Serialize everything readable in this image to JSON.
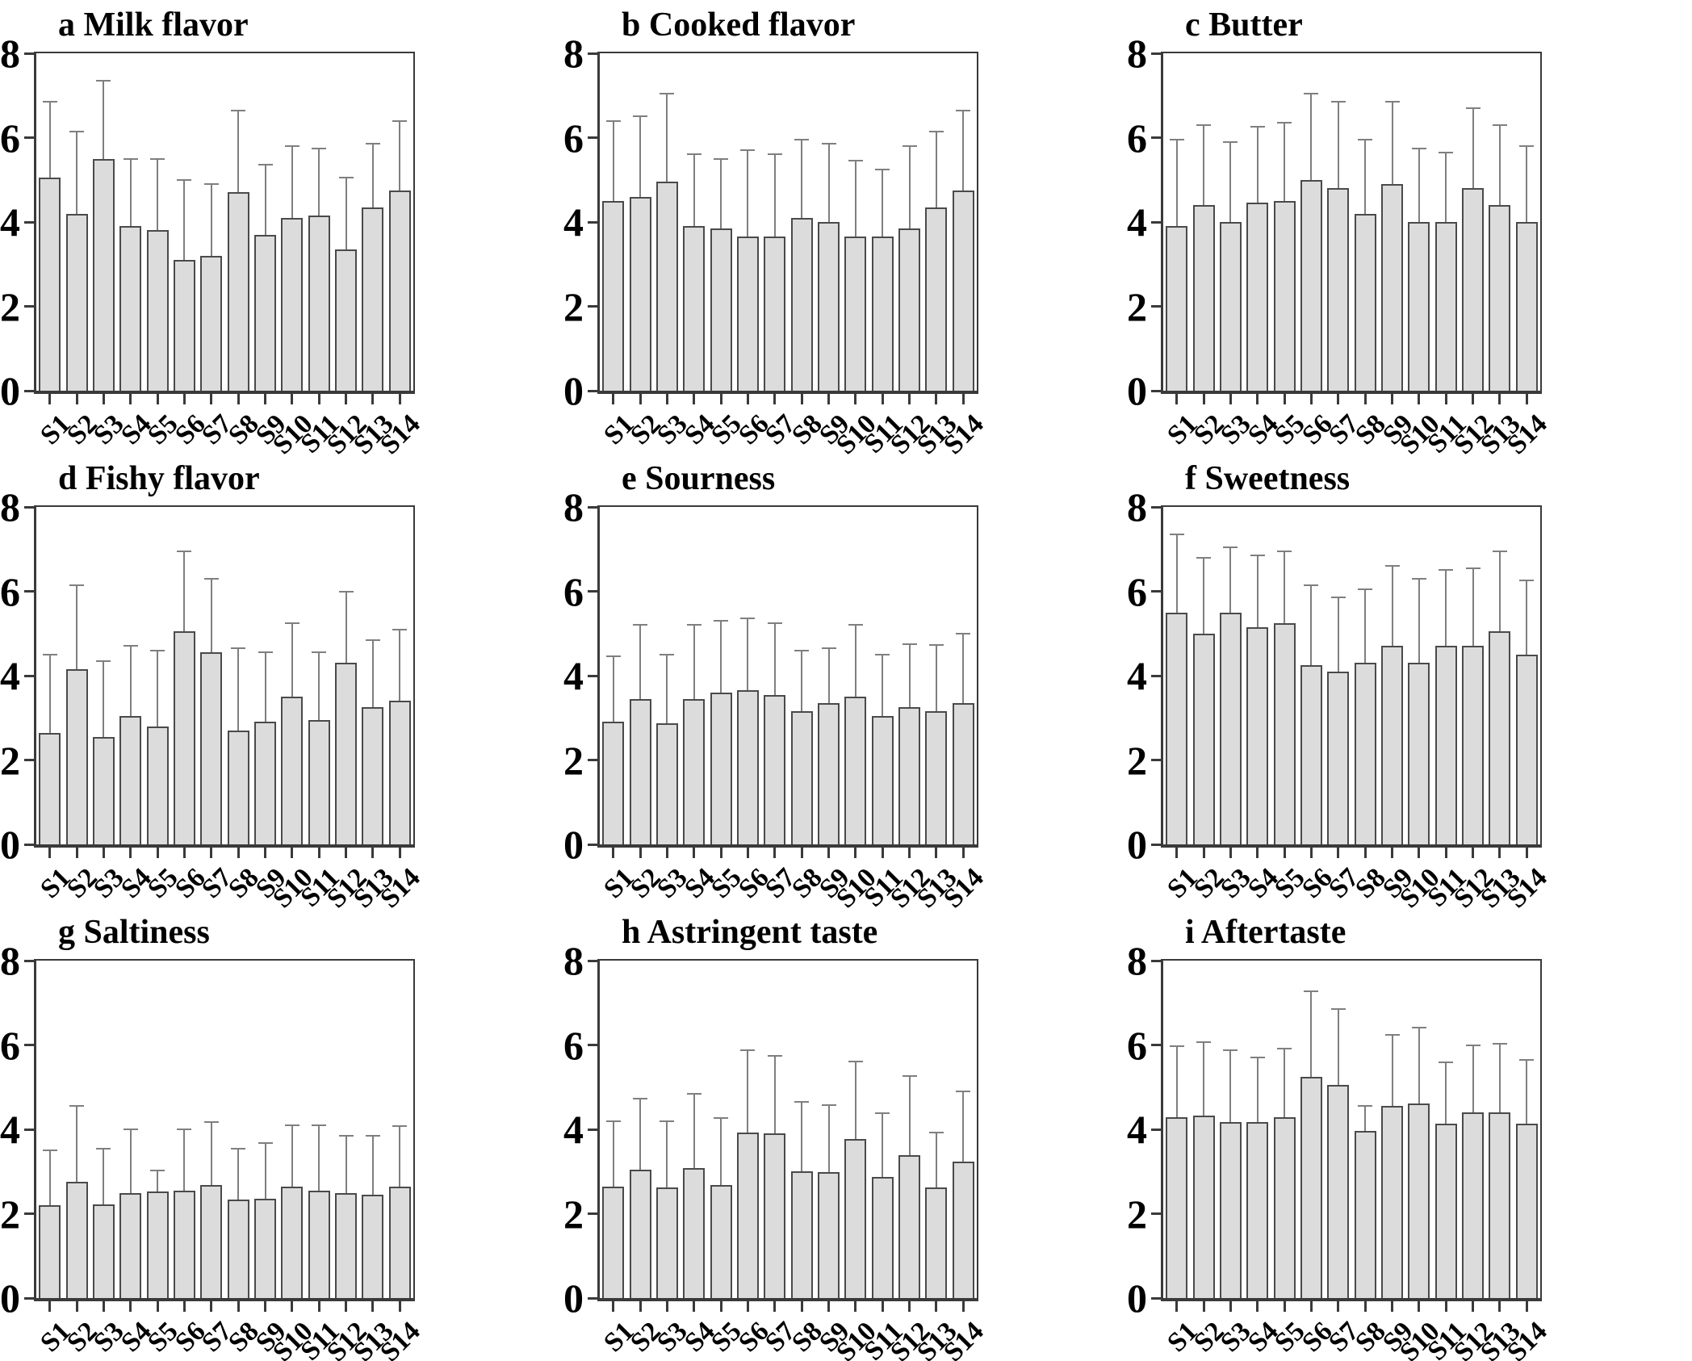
{
  "figure": {
    "description": "3x3 grid of sensory attribute bar charts for 14 samples",
    "background": "#ffffff"
  },
  "styles": {
    "bar_fill": "#dcdcdc",
    "bar_border": "#4a4a4a",
    "error_color": "#7f7f7f",
    "axis_color": "#3a3a3a",
    "text_color": "#000000"
  },
  "chart_data": [
    {
      "type": "bar",
      "panel": "a",
      "title": "Milk flavor",
      "display_title": "a Milk flavor",
      "categories": [
        "S1",
        "S2",
        "S3",
        "S4",
        "S5",
        "S6",
        "S7",
        "S8",
        "S9",
        "S10",
        "S11",
        "S12",
        "S13",
        "S14"
      ],
      "values": [
        5.05,
        4.2,
        5.5,
        3.9,
        3.8,
        3.1,
        3.2,
        4.7,
        3.7,
        4.1,
        4.15,
        3.35,
        4.35,
        4.75
      ],
      "error_top": [
        6.85,
        6.15,
        7.35,
        5.5,
        5.5,
        5.0,
        4.9,
        6.65,
        5.35,
        5.8,
        5.75,
        5.05,
        5.85,
        6.4
      ],
      "ylim": [
        0,
        8
      ],
      "yticks": [
        0,
        2,
        4,
        6,
        8
      ],
      "xlabel": "",
      "ylabel": "",
      "grid": false,
      "legend": "none"
    },
    {
      "type": "bar",
      "panel": "b",
      "title": "Cooked flavor",
      "display_title": "b Cooked flavor",
      "categories": [
        "S1",
        "S2",
        "S3",
        "S4",
        "S5",
        "S6",
        "S7",
        "S8",
        "S9",
        "S10",
        "S11",
        "S12",
        "S13",
        "S14"
      ],
      "values": [
        4.5,
        4.6,
        4.95,
        3.9,
        3.85,
        3.65,
        3.65,
        4.1,
        4.0,
        3.65,
        3.65,
        3.85,
        4.35,
        4.75
      ],
      "error_top": [
        6.4,
        6.5,
        7.05,
        5.6,
        5.5,
        5.7,
        5.6,
        5.95,
        5.85,
        5.45,
        5.25,
        5.8,
        6.15,
        6.65
      ],
      "ylim": [
        0,
        8
      ],
      "yticks": [
        0,
        2,
        4,
        6,
        8
      ],
      "xlabel": "",
      "ylabel": "",
      "grid": false,
      "legend": "none"
    },
    {
      "type": "bar",
      "panel": "c",
      "title": "Butter",
      "display_title": "c Butter",
      "categories": [
        "S1",
        "S2",
        "S3",
        "S4",
        "S5",
        "S6",
        "S7",
        "S8",
        "S9",
        "S10",
        "S11",
        "S12",
        "S13",
        "S14"
      ],
      "values": [
        3.9,
        4.4,
        4.0,
        4.45,
        4.5,
        5.0,
        4.8,
        4.2,
        4.9,
        4.0,
        4.0,
        4.8,
        4.4,
        4.0
      ],
      "error_top": [
        5.95,
        6.3,
        5.9,
        6.25,
        6.35,
        7.05,
        6.85,
        5.95,
        6.85,
        5.75,
        5.65,
        6.7,
        6.3,
        5.8
      ],
      "ylim": [
        0,
        8
      ],
      "yticks": [
        0,
        2,
        4,
        6,
        8
      ],
      "xlabel": "",
      "ylabel": "",
      "grid": false,
      "legend": "none"
    },
    {
      "type": "bar",
      "panel": "d",
      "title": "Fishy flavor",
      "display_title": "d Fishy flavor",
      "categories": [
        "S1",
        "S2",
        "S3",
        "S4",
        "S5",
        "S6",
        "S7",
        "S8",
        "S9",
        "S10",
        "S11",
        "S12",
        "S13",
        "S14"
      ],
      "values": [
        2.65,
        4.15,
        2.55,
        3.05,
        2.8,
        5.05,
        4.55,
        2.7,
        2.9,
        3.5,
        2.95,
        4.3,
        3.25,
        3.4
      ],
      "error_top": [
        4.5,
        6.15,
        4.35,
        4.7,
        4.6,
        6.95,
        6.3,
        4.65,
        4.55,
        5.25,
        4.55,
        6.0,
        4.85,
        5.1
      ],
      "ylim": [
        0,
        8
      ],
      "yticks": [
        0,
        2,
        4,
        6,
        8
      ],
      "xlabel": "",
      "ylabel": "",
      "grid": false,
      "legend": "none"
    },
    {
      "type": "bar",
      "panel": "e",
      "title": "Sourness",
      "display_title": "e Sourness",
      "categories": [
        "S1",
        "S2",
        "S3",
        "S4",
        "S5",
        "S6",
        "S7",
        "S8",
        "S9",
        "S10",
        "S11",
        "S12",
        "S13",
        "S14"
      ],
      "values": [
        2.9,
        3.45,
        2.88,
        3.45,
        3.6,
        3.65,
        3.55,
        3.15,
        3.35,
        3.5,
        3.05,
        3.25,
        3.15,
        3.35
      ],
      "error_top": [
        4.45,
        5.2,
        4.5,
        5.2,
        5.3,
        5.35,
        5.25,
        4.6,
        4.65,
        5.2,
        4.5,
        4.75,
        4.72,
        5.0
      ],
      "ylim": [
        0,
        8
      ],
      "yticks": [
        0,
        2,
        4,
        6,
        8
      ],
      "xlabel": "",
      "ylabel": "",
      "grid": false,
      "legend": "none"
    },
    {
      "type": "bar",
      "panel": "f",
      "title": "Sweetness",
      "display_title": "f Sweetness",
      "categories": [
        "S1",
        "S2",
        "S3",
        "S4",
        "S5",
        "S6",
        "S7",
        "S8",
        "S9",
        "S10",
        "S11",
        "S12",
        "S13",
        "S14"
      ],
      "values": [
        5.5,
        5.0,
        5.5,
        5.15,
        5.25,
        4.25,
        4.1,
        4.3,
        4.7,
        4.3,
        4.7,
        4.7,
        5.05,
        4.5
      ],
      "error_top": [
        7.35,
        6.8,
        7.05,
        6.85,
        6.95,
        6.15,
        5.85,
        6.05,
        6.6,
        6.3,
        6.5,
        6.55,
        6.95,
        6.25
      ],
      "ylim": [
        0,
        8
      ],
      "yticks": [
        0,
        2,
        4,
        6,
        8
      ],
      "xlabel": "",
      "ylabel": "",
      "grid": false,
      "legend": "none"
    },
    {
      "type": "bar",
      "panel": "g",
      "title": "Saltiness",
      "display_title": "g Saltiness",
      "categories": [
        "S1",
        "S2",
        "S3",
        "S4",
        "S5",
        "S6",
        "S7",
        "S8",
        "S9",
        "S10",
        "S11",
        "S12",
        "S13",
        "S14"
      ],
      "values": [
        2.2,
        2.75,
        2.22,
        2.48,
        2.52,
        2.55,
        2.68,
        2.33,
        2.35,
        2.65,
        2.55,
        2.48,
        2.45,
        2.65
      ],
      "error_top": [
        3.5,
        4.55,
        3.55,
        4.0,
        3.02,
        4.0,
        4.17,
        3.55,
        3.67,
        4.1,
        4.1,
        3.85,
        3.85,
        4.07
      ],
      "ylim": [
        0,
        8
      ],
      "yticks": [
        0,
        2,
        4,
        6,
        8
      ],
      "xlabel": "",
      "ylabel": "",
      "grid": false,
      "legend": "none"
    },
    {
      "type": "bar",
      "panel": "h",
      "title": "Astringent taste",
      "display_title": "h Astringent taste",
      "categories": [
        "S1",
        "S2",
        "S3",
        "S4",
        "S5",
        "S6",
        "S7",
        "S8",
        "S9",
        "S10",
        "S11",
        "S12",
        "S13",
        "S14"
      ],
      "values": [
        2.65,
        3.05,
        2.62,
        3.08,
        2.68,
        3.93,
        3.9,
        3.0,
        2.98,
        3.77,
        2.87,
        3.38,
        2.63,
        3.23
      ],
      "error_top": [
        4.2,
        4.72,
        4.2,
        4.85,
        4.27,
        5.88,
        5.75,
        4.65,
        4.57,
        5.6,
        4.38,
        5.27,
        3.93,
        4.9
      ],
      "ylim": [
        0,
        8
      ],
      "yticks": [
        0,
        2,
        4,
        6,
        8
      ],
      "xlabel": "",
      "ylabel": "",
      "grid": false,
      "legend": "none"
    },
    {
      "type": "bar",
      "panel": "i",
      "title": "Aftertaste",
      "display_title": "i Aftertaste",
      "categories": [
        "S1",
        "S2",
        "S3",
        "S4",
        "S5",
        "S6",
        "S7",
        "S8",
        "S9",
        "S10",
        "S11",
        "S12",
        "S13",
        "S14"
      ],
      "values": [
        4.28,
        4.33,
        4.17,
        4.17,
        4.28,
        5.25,
        5.05,
        3.97,
        4.55,
        4.62,
        4.13,
        4.4,
        4.4,
        4.13
      ],
      "error_top": [
        5.97,
        6.07,
        5.88,
        5.7,
        5.92,
        7.27,
        6.85,
        4.55,
        6.23,
        6.42,
        5.58,
        6.0,
        6.03,
        5.65
      ],
      "ylim": [
        0,
        8
      ],
      "yticks": [
        0,
        2,
        4,
        6,
        8
      ],
      "xlabel": "",
      "ylabel": "",
      "grid": false,
      "legend": "none"
    }
  ]
}
